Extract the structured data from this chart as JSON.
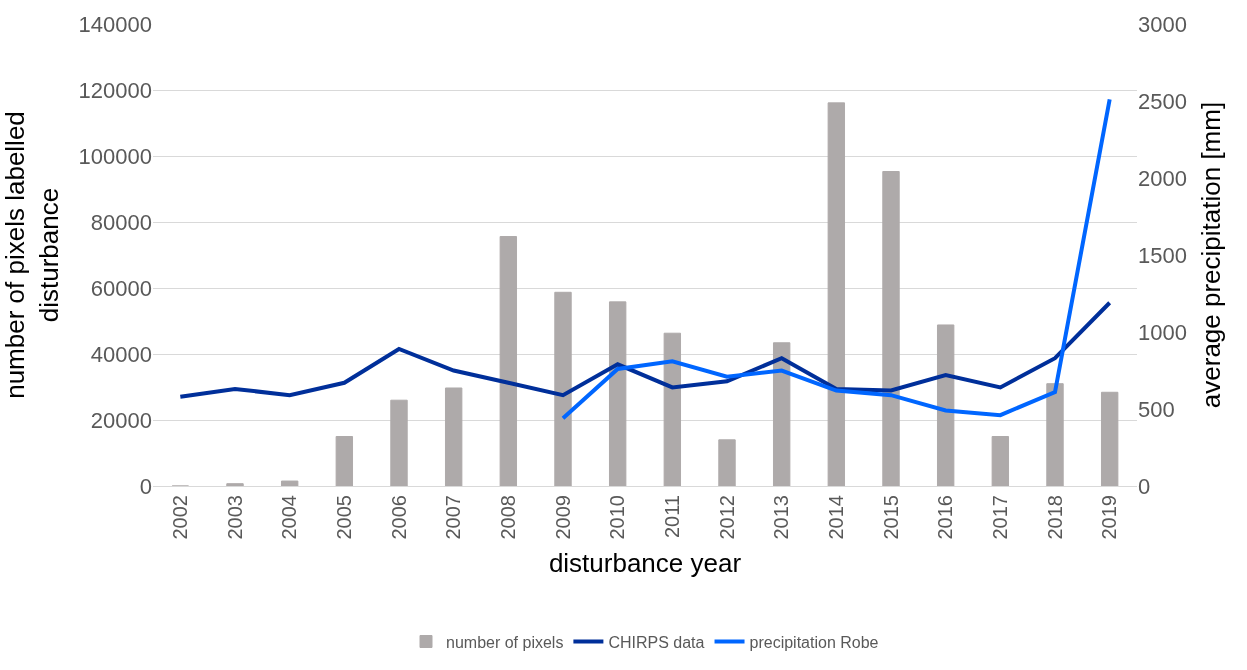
{
  "chart_data": {
    "type": "bar",
    "xlabel": "disturbance year",
    "ylabel": "number of pixels labelled disturbance",
    "y2label": "average precipitation [mm]",
    "categories": [
      "2002",
      "2003",
      "2004",
      "2005",
      "2006",
      "2007",
      "2008",
      "2009",
      "2010",
      "2011",
      "2012",
      "2013",
      "2014",
      "2015",
      "2016",
      "2017",
      "2018",
      "2019"
    ],
    "series": [
      {
        "name": "number of pixels",
        "color": "#aeaaaa",
        "values": [
          0,
          700,
          1500,
          15000,
          26000,
          29700,
          75600,
          58700,
          55800,
          46300,
          14000,
          43400,
          116100,
          95300,
          48800,
          15000,
          31000,
          28400
        ]
      },
      {
        "name": "CHIRPS data",
        "type": "line",
        "axis": "y2",
        "color": "#002f9a",
        "values": [
          580,
          630,
          590,
          670,
          890,
          750,
          670,
          590,
          790,
          640,
          680,
          830,
          630,
          620,
          720,
          640,
          830,
          1190
        ]
      },
      {
        "name": "precipitation Robe",
        "type": "line",
        "axis": "y2",
        "color": "#0066ff",
        "values": [
          null,
          null,
          null,
          null,
          null,
          null,
          null,
          440,
          760,
          810,
          710,
          750,
          620,
          590,
          490,
          460,
          610,
          2510
        ]
      }
    ],
    "ylim": [
      0,
      140000
    ],
    "yticks": [
      0,
      20000,
      40000,
      60000,
      80000,
      100000,
      120000,
      140000
    ],
    "y2lim": [
      0,
      3000
    ],
    "y2ticks": [
      0,
      500,
      1000,
      1500,
      2000,
      2500,
      3000
    ],
    "grid": "y",
    "legend": "bottom",
    "marker": "none",
    "line_style": "solid"
  }
}
